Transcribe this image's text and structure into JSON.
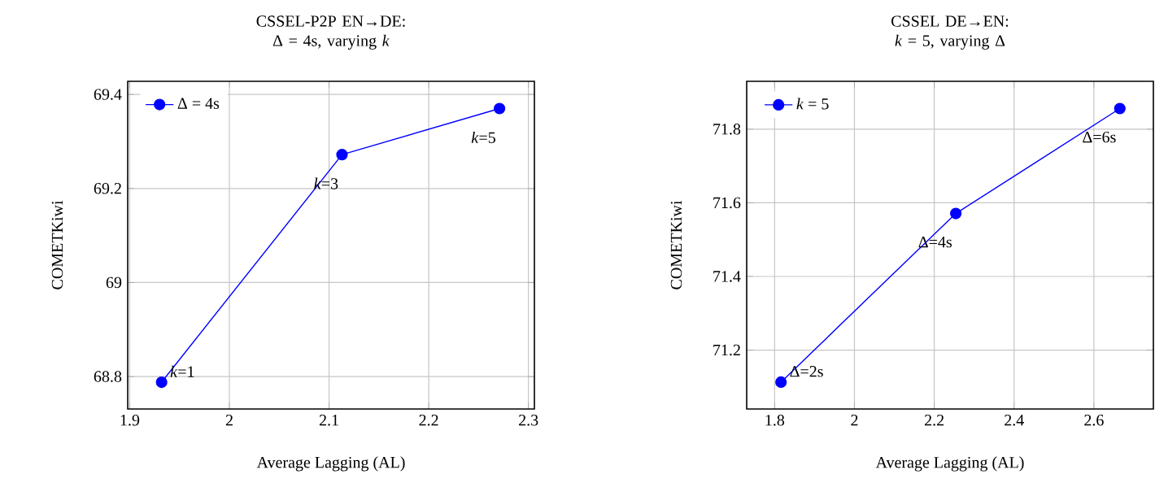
{
  "chart_data": [
    {
      "type": "line",
      "title": "CSSEL-P2P EN→DE:",
      "subtitle": "Δ = 4s, varying *k*",
      "xlabel": "Average Lagging (AL)",
      "ylabel": "COMETKiwi",
      "x": [
        1.932,
        2.113,
        2.271
      ],
      "series": [
        {
          "name": "Δ = 4s",
          "color": "#0000ff",
          "values": [
            68.788,
            69.272,
            69.37
          ]
        }
      ],
      "xlim": [
        1.898,
        2.306
      ],
      "ylim": [
        68.731,
        69.428
      ],
      "xticks": [
        1.9,
        2,
        2.1,
        2.2,
        2.3
      ],
      "yticks": [
        68.8,
        69,
        69.2,
        69.4
      ],
      "grid": true,
      "legend": "top left",
      "marker": "circle",
      "line_style": "solid",
      "annotations": [
        {
          "text": "*k*=1",
          "x": 1.932,
          "y": 68.788
        },
        {
          "text": "*k*=3",
          "x": 2.113,
          "y": 69.272
        },
        {
          "text": "*k*=5",
          "x": 2.271,
          "y": 69.37
        }
      ]
    },
    {
      "type": "line",
      "title": "CSSEL DE→EN:",
      "subtitle": "*k* = 5, varying Δ",
      "xlabel": "Average Lagging (AL)",
      "ylabel": "COMETKiwi",
      "x": [
        1.816,
        2.254,
        2.665
      ],
      "series": [
        {
          "name": "*k* = 5",
          "color": "#0000ff",
          "values": [
            71.113,
            71.571,
            71.856
          ]
        }
      ],
      "xlim": [
        1.73,
        2.749
      ],
      "ylim": [
        71.04,
        71.93
      ],
      "xticks": [
        1.8,
        2,
        2.2,
        2.4,
        2.6
      ],
      "yticks": [
        71.2,
        71.4,
        71.6,
        71.8
      ],
      "grid": true,
      "legend": "top left",
      "marker": "circle",
      "line_style": "solid",
      "annotations": [
        {
          "text": "Δ=2s",
          "x": 1.816,
          "y": 71.113
        },
        {
          "text": "Δ=4s",
          "x": 2.254,
          "y": 71.571
        },
        {
          "text": "Δ=6s",
          "x": 2.665,
          "y": 71.856
        }
      ]
    }
  ]
}
